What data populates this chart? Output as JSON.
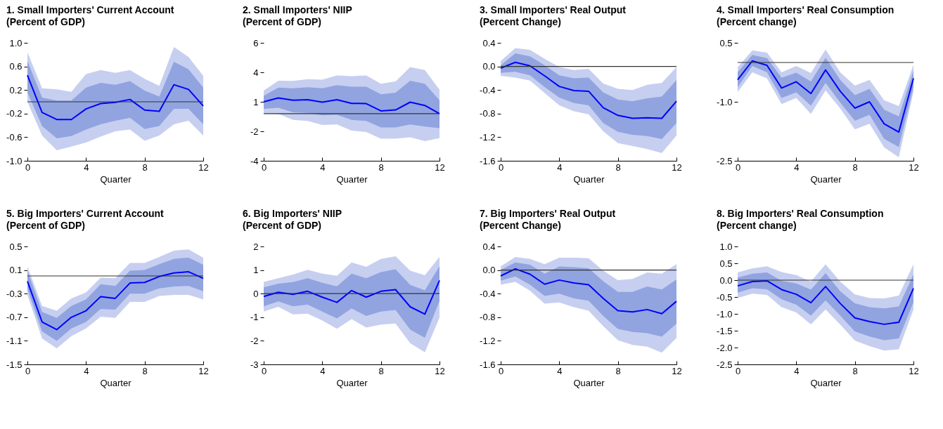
{
  "chart_data": [
    {
      "type": "line",
      "title": "1. Small Importers' Current Account",
      "subtitle": "(Percent of GDP)",
      "xlabel": "Quarter",
      "x": [
        0,
        1,
        2,
        3,
        4,
        5,
        6,
        7,
        8,
        9,
        10,
        11,
        12
      ],
      "xlim": [
        0,
        12
      ],
      "xticks": [
        0,
        4,
        8,
        12
      ],
      "ylim": [
        -1,
        1
      ],
      "yticks": [
        {
          "value": 1,
          "label": "1.0"
        },
        0.6,
        0.2,
        -0.2,
        -0.6,
        {
          "value": -1,
          "label": "-1.0"
        }
      ],
      "ref_lines": [
        {
          "axis": "y",
          "value": 0,
          "color": "#333333"
        }
      ],
      "series": [
        {
          "color": "#c6cff0",
          "values": [
            null,
            null,
            null,
            null,
            null,
            null,
            null,
            null,
            null,
            null,
            null,
            null,
            null
          ],
          "upper": [
            0.84,
            0.23,
            0.21,
            0.17,
            0.47,
            0.54,
            0.49,
            0.54,
            0.39,
            0.27,
            0.93,
            0.76,
            0.44
          ],
          "lower": [
            0.0,
            -0.57,
            -0.82,
            -0.76,
            -0.69,
            -0.59,
            -0.5,
            -0.47,
            -0.66,
            -0.57,
            -0.38,
            -0.32,
            -0.57
          ]
        },
        {
          "color": "#91a4e0",
          "values": [
            null,
            null,
            null,
            null,
            null,
            null,
            null,
            null,
            null,
            null,
            null,
            null,
            null
          ],
          "upper": [
            0.69,
            0.07,
            0.02,
            0.02,
            0.24,
            0.32,
            0.29,
            0.35,
            0.19,
            0.09,
            0.68,
            0.55,
            0.24
          ],
          "lower": [
            0.16,
            -0.41,
            -0.62,
            -0.58,
            -0.47,
            -0.38,
            -0.32,
            -0.27,
            -0.46,
            -0.41,
            -0.12,
            -0.12,
            -0.38
          ]
        },
        {
          "color": "#0000ff",
          "values": [
            0.45,
            -0.18,
            -0.3,
            -0.3,
            -0.12,
            -0.03,
            -0.01,
            0.04,
            -0.14,
            -0.16,
            0.29,
            0.21,
            -0.07
          ]
        }
      ]
    },
    {
      "type": "line",
      "title": "2. Small Importers' NIIP",
      "subtitle": "(Percent of GDP)",
      "xlabel": "Quarter",
      "x": [
        0,
        1,
        2,
        3,
        4,
        5,
        6,
        7,
        8,
        9,
        10,
        11,
        12
      ],
      "xlim": [
        0,
        12
      ],
      "xticks": [
        0,
        4,
        8,
        12
      ],
      "ylim": [
        -4,
        6
      ],
      "yticks": [
        6,
        {
          "value": 3.5,
          "label": "4"
        },
        1,
        {
          "value": -1.5,
          "label": "-2"
        },
        -4
      ],
      "ref_lines": [
        {
          "axis": "y",
          "value": 0,
          "color": "#333333"
        }
      ],
      "series": [
        {
          "color": "#c6cff0",
          "values": [
            null,
            null,
            null,
            null,
            null,
            null,
            null,
            null,
            null,
            null,
            null,
            null,
            null
          ],
          "upper": [
            1.95,
            2.79,
            2.77,
            2.92,
            2.87,
            3.23,
            3.18,
            3.23,
            2.54,
            2.72,
            3.95,
            3.69,
            2.03
          ],
          "lower": [
            0.05,
            -0.03,
            -0.54,
            -0.62,
            -0.97,
            -0.92,
            -1.44,
            -1.56,
            -2.13,
            -2.13,
            -2.0,
            -2.33,
            -2.08
          ]
        },
        {
          "color": "#91a4e0",
          "values": [
            null,
            null,
            null,
            null,
            null,
            null,
            null,
            null,
            null,
            null,
            null,
            null,
            null
          ],
          "upper": [
            1.51,
            2.2,
            2.15,
            2.23,
            2.15,
            2.41,
            2.28,
            2.28,
            1.64,
            1.77,
            2.79,
            2.54,
            1.13
          ],
          "lower": [
            0.41,
            0.49,
            0.1,
            0.05,
            -0.15,
            -0.1,
            -0.54,
            -0.62,
            -1.18,
            -1.18,
            -0.92,
            -1.1,
            -1.23
          ]
        },
        {
          "color": "#0000ff",
          "values": [
            1.0,
            1.33,
            1.13,
            1.18,
            0.97,
            1.18,
            0.87,
            0.85,
            0.23,
            0.31,
            0.97,
            0.69,
            0.0
          ]
        }
      ]
    },
    {
      "type": "line",
      "title": "3. Small Importers' Real Output",
      "subtitle": "(Percent Change)",
      "xlabel": "Quarter",
      "x": [
        0,
        1,
        2,
        3,
        4,
        5,
        6,
        7,
        8,
        9,
        10,
        11,
        12
      ],
      "xlim": [
        0,
        12
      ],
      "xticks": [
        0,
        4,
        8,
        12
      ],
      "ylim": [
        -1.6,
        0.4
      ],
      "yticks": [
        0.4,
        {
          "value": 0,
          "label": "0.0"
        },
        -0.4,
        -0.8,
        -1.2,
        -1.6
      ],
      "ref_lines": [
        {
          "axis": "y",
          "value": 0,
          "color": "#333333"
        }
      ],
      "series": [
        {
          "color": "#c6cff0",
          "values": [
            null,
            null,
            null,
            null,
            null,
            null,
            null,
            null,
            null,
            null,
            null,
            null,
            null
          ],
          "upper": [
            0.09,
            0.31,
            0.28,
            0.13,
            -0.01,
            -0.06,
            -0.04,
            -0.29,
            -0.38,
            -0.4,
            -0.31,
            -0.28,
            -0.01
          ],
          "lower": [
            -0.16,
            -0.19,
            -0.24,
            -0.45,
            -0.66,
            -0.76,
            -0.81,
            -1.1,
            -1.3,
            -1.35,
            -1.4,
            -1.47,
            -1.17
          ]
        },
        {
          "color": "#91a4e0",
          "values": [
            null,
            null,
            null,
            null,
            null,
            null,
            null,
            null,
            null,
            null,
            null,
            null,
            null
          ],
          "upper": [
            0.02,
            0.22,
            0.17,
            0.02,
            -0.15,
            -0.2,
            -0.19,
            -0.44,
            -0.56,
            -0.59,
            -0.54,
            -0.51,
            -0.23
          ],
          "lower": [
            -0.11,
            -0.09,
            -0.15,
            -0.35,
            -0.53,
            -0.62,
            -0.66,
            -0.96,
            -1.11,
            -1.16,
            -1.18,
            -1.23,
            -0.96
          ]
        },
        {
          "color": "#0000ff",
          "values": [
            -0.03,
            0.07,
            0.01,
            -0.16,
            -0.34,
            -0.41,
            -0.42,
            -0.7,
            -0.83,
            -0.88,
            -0.87,
            -0.88,
            -0.59
          ]
        }
      ]
    },
    {
      "type": "line",
      "title": "4. Small Importers' Real Consumption",
      "subtitle": "(Percent change)",
      "xlabel": "Quarter",
      "x": [
        0,
        1,
        2,
        3,
        4,
        5,
        6,
        7,
        8,
        9,
        10,
        11,
        12
      ],
      "xlim": [
        0,
        12
      ],
      "xticks": [
        0,
        4,
        8,
        12
      ],
      "ylim": [
        -2.5,
        0.5
      ],
      "yticks": [
        0.5,
        {
          "value": -1,
          "label": "-1.0"
        },
        -2.5
      ],
      "ref_lines": [
        {
          "axis": "y",
          "value": 0,
          "color": "#333333"
        }
      ],
      "series": [
        {
          "color": "#c6cff0",
          "values": [
            null,
            null,
            null,
            null,
            null,
            null,
            null,
            null,
            null,
            null,
            null,
            null,
            null
          ],
          "upper": [
            -0.12,
            0.31,
            0.25,
            -0.25,
            -0.09,
            -0.27,
            0.33,
            -0.25,
            -0.59,
            -0.44,
            -0.96,
            -1.11,
            -0.06
          ],
          "lower": [
            -0.75,
            -0.25,
            -0.4,
            -1.06,
            -0.9,
            -1.31,
            -0.71,
            -1.17,
            -1.7,
            -1.56,
            -2.16,
            -2.41,
            -0.75
          ]
        },
        {
          "color": "#91a4e0",
          "values": [
            null,
            null,
            null,
            null,
            null,
            null,
            null,
            null,
            null,
            null,
            null,
            null,
            null
          ],
          "upper": [
            -0.25,
            0.19,
            0.11,
            -0.39,
            -0.26,
            -0.48,
            0.12,
            -0.44,
            -0.83,
            -0.67,
            -1.2,
            -1.37,
            -0.21
          ],
          "lower": [
            -0.63,
            -0.09,
            -0.25,
            -0.9,
            -0.76,
            -1.1,
            -0.52,
            -1.02,
            -1.48,
            -1.33,
            -1.94,
            -2.15,
            -0.63
          ]
        },
        {
          "color": "#0000ff",
          "values": [
            -0.44,
            0.04,
            -0.07,
            -0.65,
            -0.49,
            -0.79,
            -0.19,
            -0.73,
            -1.16,
            -1.0,
            -1.56,
            -1.77,
            -0.4
          ]
        }
      ]
    },
    {
      "type": "line",
      "title": "5. Big Importers' Current Account",
      "subtitle": "(Percent of GDP)",
      "xlabel": "Quarter",
      "x": [
        0,
        1,
        2,
        3,
        4,
        5,
        6,
        7,
        8,
        9,
        10,
        11,
        12
      ],
      "xlim": [
        0,
        12
      ],
      "xticks": [
        0,
        4,
        8,
        12
      ],
      "ylim": [
        -1.5,
        0.5
      ],
      "yticks": [
        0.5,
        0.1,
        -0.3,
        -0.7,
        -1.1,
        -1.5
      ],
      "ref_lines": [
        {
          "axis": "y",
          "value": 0,
          "color": "#333333"
        }
      ],
      "series": [
        {
          "color": "#c6cff0",
          "values": [
            null,
            null,
            null,
            null,
            null,
            null,
            null,
            null,
            null,
            null,
            null,
            null,
            null
          ],
          "upper": [
            0.16,
            -0.51,
            -0.59,
            -0.38,
            -0.28,
            -0.03,
            -0.04,
            0.22,
            0.22,
            0.32,
            0.43,
            0.45,
            0.31
          ],
          "lower": [
            -0.32,
            -1.06,
            -1.23,
            -1.02,
            -0.89,
            -0.69,
            -0.71,
            -0.44,
            -0.44,
            -0.34,
            -0.32,
            -0.32,
            -0.4
          ]
        },
        {
          "color": "#91a4e0",
          "values": [
            null,
            null,
            null,
            null,
            null,
            null,
            null,
            null,
            null,
            null,
            null,
            null,
            null
          ],
          "upper": [
            0.09,
            -0.61,
            -0.71,
            -0.51,
            -0.4,
            -0.14,
            -0.17,
            0.09,
            0.1,
            0.2,
            0.29,
            0.31,
            0.19
          ],
          "lower": [
            -0.22,
            -0.94,
            -1.1,
            -0.89,
            -0.78,
            -0.56,
            -0.57,
            -0.3,
            -0.3,
            -0.21,
            -0.18,
            -0.17,
            -0.26
          ]
        },
        {
          "color": "#0000ff",
          "values": [
            -0.09,
            -0.78,
            -0.91,
            -0.7,
            -0.59,
            -0.35,
            -0.38,
            -0.12,
            -0.11,
            -0.01,
            0.05,
            0.07,
            -0.04
          ]
        }
      ]
    },
    {
      "type": "line",
      "title": "6. Big Importers' NIIP",
      "subtitle": "(Percent of GDP)",
      "xlabel": "Quarter",
      "x": [
        0,
        1,
        2,
        3,
        4,
        5,
        6,
        7,
        8,
        9,
        10,
        11,
        12
      ],
      "xlim": [
        0,
        12
      ],
      "xticks": [
        0,
        4,
        8,
        12
      ],
      "ylim": [
        -3,
        2
      ],
      "yticks": [
        2,
        1,
        0,
        -1,
        -2,
        -3
      ],
      "ref_lines": [
        {
          "axis": "y",
          "value": 0,
          "color": "#333333"
        }
      ],
      "series": [
        {
          "color": "#c6cff0",
          "values": [
            null,
            null,
            null,
            null,
            null,
            null,
            null,
            null,
            null,
            null,
            null,
            null,
            null
          ],
          "upper": [
            0.5,
            0.65,
            0.81,
            1.01,
            0.85,
            0.76,
            1.32,
            1.14,
            1.47,
            1.58,
            0.97,
            0.78,
            1.55
          ],
          "lower": [
            -0.76,
            -0.56,
            -0.88,
            -0.85,
            -1.14,
            -1.49,
            -1.08,
            -1.44,
            -1.31,
            -1.27,
            -2.1,
            -2.49,
            -1.01
          ]
        },
        {
          "color": "#91a4e0",
          "values": [
            null,
            null,
            null,
            null,
            null,
            null,
            null,
            null,
            null,
            null,
            null,
            null,
            null
          ],
          "upper": [
            0.27,
            0.42,
            0.49,
            0.65,
            0.46,
            0.31,
            0.85,
            0.65,
            0.91,
            1.03,
            0.37,
            0.14,
            1.17
          ],
          "lower": [
            -0.54,
            -0.33,
            -0.54,
            -0.46,
            -0.76,
            -1.05,
            -0.63,
            -0.95,
            -0.76,
            -0.69,
            -1.53,
            -1.87,
            -0.31
          ]
        },
        {
          "color": "#0000ff",
          "values": [
            -0.12,
            0.06,
            -0.03,
            0.1,
            -0.15,
            -0.37,
            0.13,
            -0.15,
            0.1,
            0.17,
            -0.56,
            -0.87,
            0.56
          ]
        }
      ]
    },
    {
      "type": "line",
      "title": "7. Big Importers' Real Output",
      "subtitle": "(Percent Change)",
      "xlabel": "Quarter",
      "x": [
        0,
        1,
        2,
        3,
        4,
        5,
        6,
        7,
        8,
        9,
        10,
        11,
        12
      ],
      "xlim": [
        0,
        12
      ],
      "xticks": [
        0,
        4,
        8,
        12
      ],
      "ylim": [
        -1.6,
        0.4
      ],
      "yticks": [
        0.4,
        {
          "value": 0,
          "label": "0.0"
        },
        -0.4,
        -0.8,
        -1.2,
        -1.6
      ],
      "ref_lines": [
        {
          "axis": "y",
          "value": 0,
          "color": "#333333"
        }
      ],
      "series": [
        {
          "color": "#c6cff0",
          "values": [
            null,
            null,
            null,
            null,
            null,
            null,
            null,
            null,
            null,
            null,
            null,
            null,
            null
          ],
          "upper": [
            0.06,
            0.22,
            0.19,
            0.1,
            0.21,
            0.21,
            0.2,
            -0.01,
            -0.17,
            -0.15,
            -0.04,
            -0.06,
            0.1
          ],
          "lower": [
            -0.25,
            -0.2,
            -0.35,
            -0.57,
            -0.55,
            -0.63,
            -0.69,
            -0.95,
            -1.19,
            -1.27,
            -1.3,
            -1.4,
            -1.15
          ]
        },
        {
          "color": "#91a4e0",
          "values": [
            null,
            null,
            null,
            null,
            null,
            null,
            null,
            null,
            null,
            null,
            null,
            null,
            null
          ],
          "upper": [
            0.0,
            0.13,
            0.09,
            -0.06,
            0.06,
            0.05,
            0.03,
            -0.19,
            -0.37,
            -0.37,
            -0.28,
            -0.33,
            -0.16
          ],
          "lower": [
            -0.18,
            -0.11,
            -0.25,
            -0.44,
            -0.4,
            -0.48,
            -0.52,
            -0.78,
            -1.0,
            -1.05,
            -1.07,
            -1.13,
            -0.91
          ]
        },
        {
          "color": "#0000ff",
          "values": [
            -0.1,
            0.02,
            -0.07,
            -0.24,
            -0.17,
            -0.22,
            -0.25,
            -0.48,
            -0.69,
            -0.71,
            -0.67,
            -0.74,
            -0.53
          ]
        }
      ]
    },
    {
      "type": "line",
      "title": "8. Big Importers' Real Consumption",
      "subtitle": "(Percent change)",
      "xlabel": "Quarter",
      "x": [
        0,
        1,
        2,
        3,
        4,
        5,
        6,
        7,
        8,
        9,
        10,
        11,
        12
      ],
      "xlim": [
        0,
        12
      ],
      "xticks": [
        0,
        4,
        8,
        12
      ],
      "ylim": [
        -2.5,
        1
      ],
      "yticks": [
        {
          "value": 1,
          "label": "1.0"
        },
        0.5,
        {
          "value": 0,
          "label": "0.0"
        },
        -0.5,
        {
          "value": -1,
          "label": "-1.0"
        },
        -1.5,
        {
          "value": -2,
          "label": "-2.0"
        },
        -2.5
      ],
      "ref_lines": [
        {
          "axis": "y",
          "value": 0,
          "color": "#333333"
        }
      ],
      "series": [
        {
          "color": "#c6cff0",
          "values": [
            null,
            null,
            null,
            null,
            null,
            null,
            null,
            null,
            null,
            null,
            null,
            null,
            null
          ],
          "upper": [
            0.23,
            0.35,
            0.41,
            0.24,
            0.15,
            -0.04,
            0.47,
            -0.04,
            -0.42,
            -0.53,
            -0.54,
            -0.46,
            0.47
          ],
          "lower": [
            -0.53,
            -0.4,
            -0.44,
            -0.8,
            -0.96,
            -1.31,
            -0.87,
            -1.32,
            -1.79,
            -1.96,
            -2.09,
            -2.05,
            -0.87
          ]
        },
        {
          "color": "#91a4e0",
          "values": [
            null,
            null,
            null,
            null,
            null,
            null,
            null,
            null,
            null,
            null,
            null,
            null,
            null
          ],
          "upper": [
            0.08,
            0.19,
            0.23,
            -0.02,
            -0.1,
            -0.28,
            0.21,
            -0.33,
            -0.69,
            -0.8,
            -0.84,
            -0.78,
            0.17
          ],
          "lower": [
            -0.37,
            -0.24,
            -0.27,
            -0.57,
            -0.73,
            -1.05,
            -0.6,
            -1.05,
            -1.52,
            -1.67,
            -1.78,
            -1.73,
            -0.65
          ]
        },
        {
          "color": "#0000ff",
          "values": [
            -0.17,
            -0.04,
            -0.02,
            -0.28,
            -0.42,
            -0.67,
            -0.19,
            -0.69,
            -1.12,
            -1.23,
            -1.31,
            -1.25,
            -0.24
          ]
        }
      ]
    }
  ]
}
